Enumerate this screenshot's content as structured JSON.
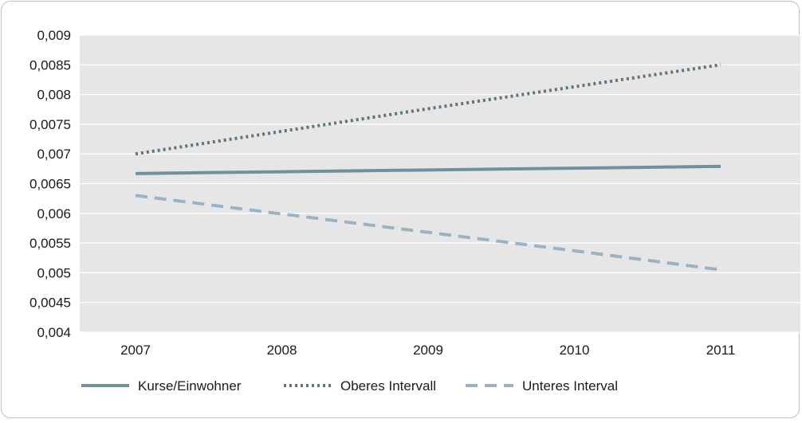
{
  "chart_data": {
    "type": "line",
    "title": "",
    "xlabel": "",
    "ylabel": "",
    "categories": [
      "2007",
      "2008",
      "2009",
      "2010",
      "2011"
    ],
    "ylim": [
      0.004,
      0.009
    ],
    "yticks": [
      "0,009",
      "0,0085",
      "0,008",
      "0,0075",
      "0,007",
      "0,0065",
      "0,006",
      "0,0055",
      "0,005",
      "0,0045",
      "0,004"
    ],
    "grid": true,
    "legend_position": "bottom",
    "series": [
      {
        "name": "Kurse/Einwohner",
        "values": [
          0.00667,
          0.0067,
          0.00673,
          0.00676,
          0.00679
        ],
        "color": "#6f919f",
        "style": "solid"
      },
      {
        "name": "Oberes Intervall",
        "values": [
          0.007,
          0.00738,
          0.00776,
          0.00813,
          0.0085
        ],
        "color": "#607480",
        "style": "dotted"
      },
      {
        "name": "Unteres Interval",
        "values": [
          0.0063,
          0.00599,
          0.00568,
          0.00537,
          0.00505
        ],
        "color": "#9ab3c3",
        "style": "dashed"
      }
    ]
  }
}
